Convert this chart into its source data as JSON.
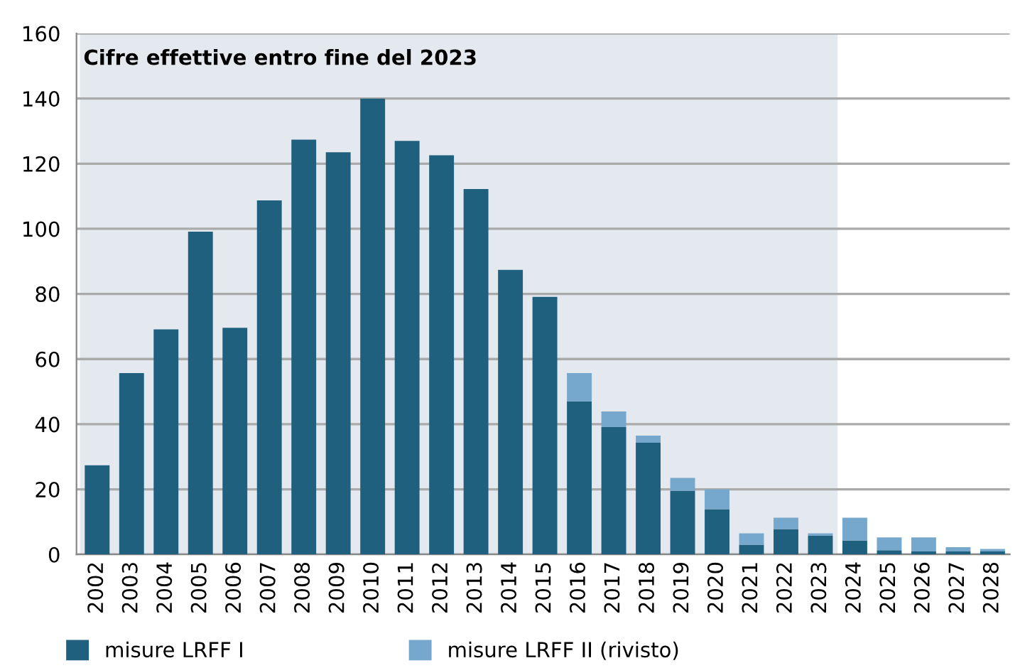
{
  "chart_data": {
    "type": "bar",
    "stacked": true,
    "categories": [
      "2002",
      "2003",
      "2004",
      "2005",
      "2006",
      "2007",
      "2008",
      "2009",
      "2010",
      "2011",
      "2012",
      "2013",
      "2014",
      "2015",
      "2016",
      "2017",
      "2018",
      "2019",
      "2020",
      "2021",
      "2022",
      "2023",
      "2024",
      "2025",
      "2026",
      "2027",
      "2028"
    ],
    "series": [
      {
        "name": "misure LRFF I",
        "color": "#20607f",
        "values": [
          27.4,
          55.7,
          69.1,
          99.1,
          69.6,
          108.7,
          127.4,
          123.5,
          140,
          127,
          122.6,
          112.2,
          87.4,
          79.1,
          47,
          39.1,
          34.3,
          19.6,
          13.9,
          3.0,
          7.8,
          5.7,
          4.3,
          1.3,
          0.9,
          0.9,
          0.9
        ]
      },
      {
        "name": "misure LRFF II (rivisto)",
        "color": "#76a7cc",
        "values": [
          0,
          0,
          0,
          0,
          0,
          0,
          0,
          0,
          0,
          0,
          0,
          0,
          0,
          0,
          8.7,
          4.8,
          2.2,
          3.9,
          6.1,
          3.5,
          3.5,
          0.8,
          7,
          3.9,
          4.3,
          1.3,
          0.8
        ]
      }
    ],
    "ylim": [
      0,
      160
    ],
    "yticks": [
      0,
      20,
      40,
      60,
      80,
      100,
      120,
      140,
      160
    ],
    "grid": "y",
    "legend": "bottom left",
    "bands": [
      {
        "axis": "x",
        "from": "2002",
        "to": "2023",
        "label": "Cifre effettive entro fine del 2023",
        "color": "#e4e9f0"
      }
    ]
  }
}
